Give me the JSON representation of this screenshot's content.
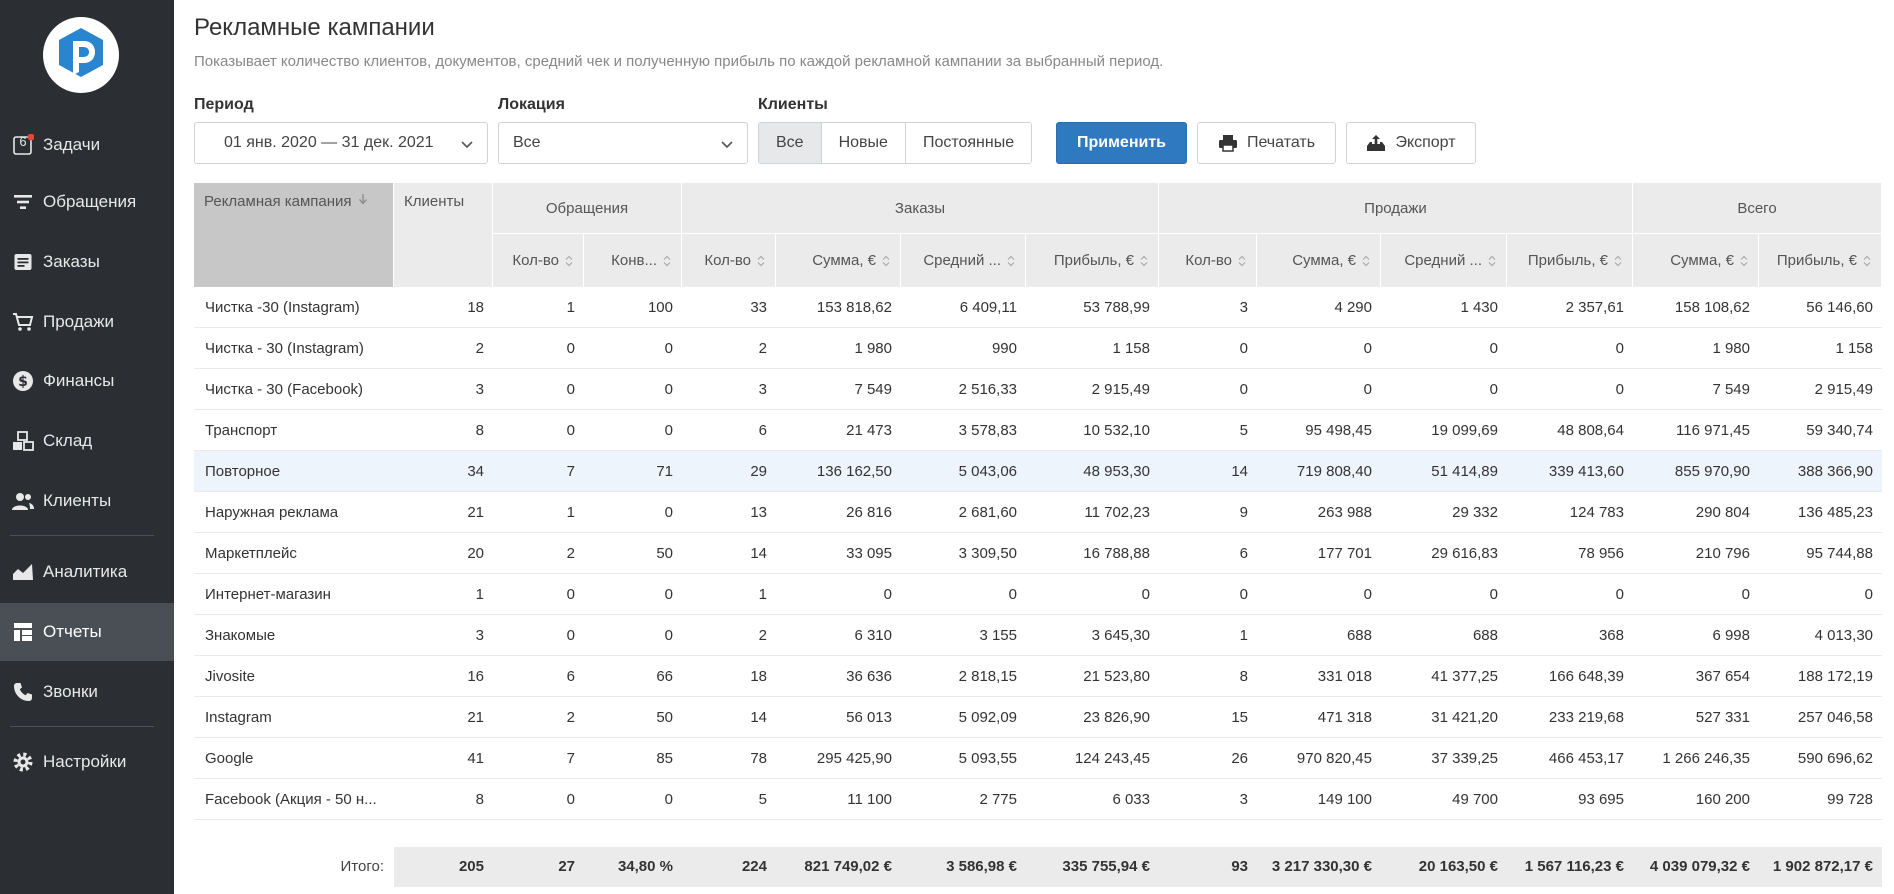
{
  "sidebar": {
    "items": [
      {
        "label": "Задачи",
        "icon": "tasks-badge-icon",
        "badge": "6"
      },
      {
        "label": "Обращения",
        "icon": "filter-lines-icon"
      },
      {
        "label": "Заказы",
        "icon": "document-icon"
      },
      {
        "label": "Продажи",
        "icon": "cart-icon"
      },
      {
        "label": "Финансы",
        "icon": "dollar-circle-icon"
      },
      {
        "label": "Склад",
        "icon": "boxes-icon"
      },
      {
        "label": "Клиенты",
        "icon": "users-icon"
      },
      {
        "label": "Аналитика",
        "icon": "chart-line-icon"
      },
      {
        "label": "Отчеты",
        "icon": "table-icon"
      },
      {
        "label": "Звонки",
        "icon": "phone-icon"
      },
      {
        "label": "Настройки",
        "icon": "gear-icon"
      }
    ]
  },
  "header": {
    "title": "Рекламные кампании",
    "subtitle": "Показывает количество клиентов, документов, средний чек и полученную прибыль по каждой рекламной кампании за выбранный период."
  },
  "filters": {
    "period_label": "Период",
    "period_value": "01 янв. 2020 — 31 дек. 2021",
    "location_label": "Локация",
    "location_value": "Все",
    "clients_label": "Клиенты",
    "clients_options": [
      "Все",
      "Новые",
      "Постоянные"
    ],
    "clients_selected": "Все",
    "apply_label": "Применить",
    "print_label": "Печатать",
    "export_label": "Экспорт"
  },
  "table": {
    "group_headers": {
      "campaign": "Рекламная кампания",
      "clients": "Клиенты",
      "requests": "Обращения",
      "orders": "Заказы",
      "sales": "Продажи",
      "total": "Всего"
    },
    "sub_headers": [
      "Кол-во",
      "Конв...",
      "Кол-во",
      "Сумма, €",
      "Средний ...",
      "Прибыль, €",
      "Кол-во",
      "Сумма, €",
      "Средний ...",
      "Прибыль, €",
      "Сумма, €",
      "Прибыль, €"
    ],
    "rows": [
      [
        "Чистка -30 (Instagram)",
        "18",
        "1",
        "100",
        "33",
        "153 818,62",
        "6 409,11",
        "53 788,99",
        "3",
        "4 290",
        "1 430",
        "2 357,61",
        "158 108,62",
        "56 146,60"
      ],
      [
        "Чистка - 30 (Instagram)",
        "2",
        "0",
        "0",
        "2",
        "1 980",
        "990",
        "1 158",
        "0",
        "0",
        "0",
        "0",
        "1 980",
        "1 158"
      ],
      [
        "Чистка - 30 (Facebook)",
        "3",
        "0",
        "0",
        "3",
        "7 549",
        "2 516,33",
        "2 915,49",
        "0",
        "0",
        "0",
        "0",
        "7 549",
        "2 915,49"
      ],
      [
        "Транспорт",
        "8",
        "0",
        "0",
        "6",
        "21 473",
        "3 578,83",
        "10 532,10",
        "5",
        "95 498,45",
        "19 099,69",
        "48 808,64",
        "116 971,45",
        "59 340,74"
      ],
      [
        "Повторное",
        "34",
        "7",
        "71",
        "29",
        "136 162,50",
        "5 043,06",
        "48 953,30",
        "14",
        "719 808,40",
        "51 414,89",
        "339 413,60",
        "855 970,90",
        "388 366,90"
      ],
      [
        "Наружная реклама",
        "21",
        "1",
        "0",
        "13",
        "26 816",
        "2 681,60",
        "11 702,23",
        "9",
        "263 988",
        "29 332",
        "124 783",
        "290 804",
        "136 485,23"
      ],
      [
        "Маркетплейс",
        "20",
        "2",
        "50",
        "14",
        "33 095",
        "3 309,50",
        "16 788,88",
        "6",
        "177 701",
        "29 616,83",
        "78 956",
        "210 796",
        "95 744,88"
      ],
      [
        "Интернет-магазин",
        "1",
        "0",
        "0",
        "1",
        "0",
        "0",
        "0",
        "0",
        "0",
        "0",
        "0",
        "0",
        "0"
      ],
      [
        "Знакомые",
        "3",
        "0",
        "0",
        "2",
        "6 310",
        "3 155",
        "3 645,30",
        "1",
        "688",
        "688",
        "368",
        "6 998",
        "4 013,30"
      ],
      [
        "Jivosite",
        "16",
        "6",
        "66",
        "18",
        "36 636",
        "2 818,15",
        "21 523,80",
        "8",
        "331 018",
        "41 377,25",
        "166 648,39",
        "367 654",
        "188 172,19"
      ],
      [
        "Instagram",
        "21",
        "2",
        "50",
        "14",
        "56 013",
        "5 092,09",
        "23 826,90",
        "15",
        "471 318",
        "31 421,20",
        "233 219,68",
        "527 331",
        "257 046,58"
      ],
      [
        "Google",
        "41",
        "7",
        "85",
        "78",
        "295 425,90",
        "5 093,55",
        "124 243,45",
        "26",
        "970 820,45",
        "37 339,25",
        "466 453,17",
        "1 266 246,35",
        "590 696,62"
      ],
      [
        "Facebook (Акция - 50 н...",
        "8",
        "0",
        "0",
        "5",
        "11 100",
        "2 775",
        "6 033",
        "3",
        "149 100",
        "49 700",
        "93 695",
        "160 200",
        "99 728"
      ]
    ],
    "highlighted_row": 4,
    "footer": {
      "label": "Итого:",
      "values": [
        "205",
        "27",
        "34,80 %",
        "224",
        "821 749,02 €",
        "3 586,98 €",
        "335 755,94 €",
        "93",
        "3 217 330,30 €",
        "20 163,50 €",
        "1 567 116,23 €",
        "4 039 079,32 €",
        "1 902 872,17 €"
      ]
    }
  },
  "colors": {
    "sidebar_bg": "#2b2f33",
    "sidebar_active": "#4a4f55",
    "primary": "#2f79c0",
    "logo_blue": "#2a85d0",
    "badge_red": "#e8443a",
    "row_highlight": "#eef4fb"
  }
}
